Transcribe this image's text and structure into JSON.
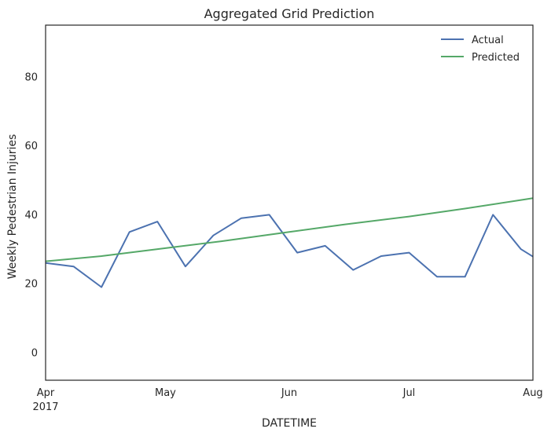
{
  "chart_data": {
    "type": "line",
    "title": "Aggregated Grid Prediction",
    "xlabel": "DATETIME",
    "ylabel": "Weekly Pedestrian Injuries",
    "ylim": [
      -8,
      95
    ],
    "xlim": [
      "2017-04-01",
      "2017-08-01"
    ],
    "yticks": [
      0,
      20,
      40,
      60,
      80
    ],
    "xticks": [
      {
        "date": "2017-04-01",
        "label": "Apr",
        "sublabel": "2017"
      },
      {
        "date": "2017-05-01",
        "label": "May",
        "sublabel": ""
      },
      {
        "date": "2017-06-01",
        "label": "Jun",
        "sublabel": ""
      },
      {
        "date": "2017-07-01",
        "label": "Jul",
        "sublabel": ""
      },
      {
        "date": "2017-08-01",
        "label": "Aug",
        "sublabel": ""
      }
    ],
    "grid": false,
    "legend_position": "top-right",
    "series": [
      {
        "name": "Actual",
        "color": "#4c72b0",
        "x": [
          "2017-04-01",
          "2017-04-08",
          "2017-04-15",
          "2017-04-22",
          "2017-04-29",
          "2017-05-06",
          "2017-05-13",
          "2017-05-20",
          "2017-05-27",
          "2017-06-03",
          "2017-06-10",
          "2017-06-17",
          "2017-06-24",
          "2017-07-01",
          "2017-07-08",
          "2017-07-15",
          "2017-07-22",
          "2017-07-29",
          "2017-08-05"
        ],
        "y": [
          26,
          25,
          19,
          35,
          38,
          25,
          34,
          39,
          40,
          29,
          31,
          24,
          28,
          29,
          22,
          22,
          40,
          30,
          25
        ]
      },
      {
        "name": "Predicted",
        "color": "#55a868",
        "x": [
          "2017-04-01",
          "2017-04-15",
          "2017-05-01",
          "2017-05-15",
          "2017-06-01",
          "2017-06-15",
          "2017-07-01",
          "2017-07-15",
          "2017-08-01"
        ],
        "y": [
          26.5,
          28.0,
          30.3,
          32.3,
          35.0,
          37.2,
          39.5,
          41.8,
          44.8
        ]
      }
    ]
  }
}
